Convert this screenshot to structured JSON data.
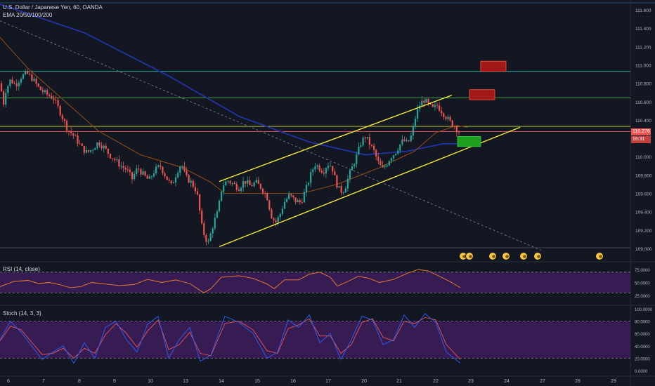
{
  "header": {
    "title": "U.S. Dollar / Japanese Yen, 60, OANDA",
    "ema_label": "EMA 20/50/100/200"
  },
  "rsi": {
    "label": "RSI (14, close)",
    "ticks": [
      "75.0000",
      "50.0000",
      "25.0000"
    ]
  },
  "stoch": {
    "label": "Stoch (14, 3, 3)",
    "ticks": [
      "100.0000",
      "80.0000",
      "60.0000",
      "40.0000",
      "20.0000",
      "0.0000"
    ]
  },
  "price_tags": {
    "last": "110.276",
    "countdown": "16:31",
    "axis_frag": "1"
  },
  "colors": {
    "background": "#131722",
    "up": "#26a69a",
    "down": "#ef5350",
    "channel": "#f2e93a",
    "rsi": "#f2822b",
    "stoch_k": "#2962ff",
    "stoch_d": "#ef5350",
    "band": "#3c1d5a",
    "ema_blue": "#2233a8",
    "ema_orange": "#8c4a18"
  },
  "chart_data": {
    "type": "candlestick",
    "ylim": [
      108.95,
      111.75
    ],
    "y_ticks": [
      "111.600",
      "111.400",
      "111.200",
      "111.000",
      "110.800",
      "110.600",
      "110.400",
      "110.000",
      "109.800",
      "109.600",
      "109.400",
      "109.200",
      "109.000"
    ],
    "x_ticks": [
      "6",
      "7",
      "8",
      "9",
      "10",
      "13",
      "14",
      "15",
      "16",
      "17",
      "20",
      "21",
      "22",
      "23",
      "24",
      "27",
      "28",
      "29"
    ],
    "horizontal_levels": [
      110.93,
      110.64,
      110.33,
      110.273
    ],
    "close_path": [
      [
        0,
        110.8
      ],
      [
        5,
        110.58
      ],
      [
        8,
        110.72
      ],
      [
        15,
        110.84
      ],
      [
        22,
        110.78
      ],
      [
        30,
        110.87
      ],
      [
        38,
        110.91
      ],
      [
        46,
        110.85
      ],
      [
        56,
        110.74
      ],
      [
        66,
        110.68
      ],
      [
        76,
        110.64
      ],
      [
        86,
        110.48
      ],
      [
        96,
        110.3
      ],
      [
        106,
        110.22
      ],
      [
        116,
        110.1
      ],
      [
        124,
        110.04
      ],
      [
        132,
        110.09
      ],
      [
        140,
        110.16
      ],
      [
        148,
        110.1
      ],
      [
        156,
        110.02
      ],
      [
        164,
        109.96
      ],
      [
        172,
        109.9
      ],
      [
        180,
        109.86
      ],
      [
        188,
        109.76
      ],
      [
        196,
        109.88
      ],
      [
        204,
        109.8
      ],
      [
        212,
        109.74
      ],
      [
        220,
        109.85
      ],
      [
        228,
        109.9
      ],
      [
        236,
        109.78
      ],
      [
        244,
        109.68
      ],
      [
        252,
        109.84
      ],
      [
        258,
        109.93
      ],
      [
        264,
        109.78
      ],
      [
        272,
        109.72
      ],
      [
        280,
        109.62
      ],
      [
        288,
        109.2
      ],
      [
        296,
        109.05
      ],
      [
        304,
        109.28
      ],
      [
        310,
        109.4
      ],
      [
        316,
        109.68
      ],
      [
        324,
        109.74
      ],
      [
        332,
        109.7
      ],
      [
        340,
        109.66
      ],
      [
        348,
        109.74
      ],
      [
        356,
        109.68
      ],
      [
        364,
        109.72
      ],
      [
        372,
        109.66
      ],
      [
        380,
        109.56
      ],
      [
        386,
        109.36
      ],
      [
        392,
        109.28
      ],
      [
        398,
        109.36
      ],
      [
        404,
        109.5
      ],
      [
        412,
        109.58
      ],
      [
        420,
        109.52
      ],
      [
        428,
        109.5
      ],
      [
        436,
        109.66
      ],
      [
        442,
        109.8
      ],
      [
        448,
        109.92
      ],
      [
        454,
        109.88
      ],
      [
        460,
        109.84
      ],
      [
        466,
        109.92
      ],
      [
        472,
        109.9
      ],
      [
        478,
        109.72
      ],
      [
        484,
        109.62
      ],
      [
        490,
        109.64
      ],
      [
        496,
        109.78
      ],
      [
        502,
        109.9
      ],
      [
        508,
        110.02
      ],
      [
        514,
        110.16
      ],
      [
        520,
        110.22
      ],
      [
        526,
        110.14
      ],
      [
        532,
        110.06
      ],
      [
        538,
        109.94
      ],
      [
        544,
        109.86
      ],
      [
        550,
        109.92
      ],
      [
        556,
        110.0
      ],
      [
        562,
        110.04
      ],
      [
        568,
        110.12
      ],
      [
        574,
        110.18
      ],
      [
        580,
        110.14
      ],
      [
        586,
        110.24
      ],
      [
        592,
        110.46
      ],
      [
        598,
        110.58
      ],
      [
        604,
        110.62
      ],
      [
        610,
        110.56
      ],
      [
        616,
        110.52
      ],
      [
        622,
        110.56
      ],
      [
        628,
        110.5
      ],
      [
        634,
        110.44
      ],
      [
        640,
        110.38
      ],
      [
        646,
        110.34
      ],
      [
        652,
        110.28
      ],
      [
        656,
        110.26
      ]
    ],
    "ema_blue_path": [
      [
        0,
        111.66
      ],
      [
        120,
        111.35
      ],
      [
        240,
        110.88
      ],
      [
        340,
        110.44
      ],
      [
        440,
        110.16
      ],
      [
        520,
        110.02
      ],
      [
        580,
        110.06
      ],
      [
        630,
        110.14
      ],
      [
        660,
        110.14
      ]
    ],
    "ema_orange_path": [
      [
        0,
        111.3
      ],
      [
        40,
        110.96
      ],
      [
        90,
        110.62
      ],
      [
        140,
        110.28
      ],
      [
        200,
        110.02
      ],
      [
        260,
        109.88
      ],
      [
        300,
        109.72
      ],
      [
        320,
        109.6
      ],
      [
        380,
        109.6
      ],
      [
        430,
        109.6
      ],
      [
        480,
        109.7
      ],
      [
        540,
        109.88
      ],
      [
        590,
        110.06
      ],
      [
        620,
        110.26
      ],
      [
        650,
        110.34
      ],
      [
        665,
        110.32
      ]
    ],
    "dashed_trend": [
      [
        0,
        111.48
      ],
      [
        770,
        108.98
      ]
    ],
    "channel_upper": [
      [
        312,
        109.73
      ],
      [
        643,
        110.67
      ]
    ],
    "channel_lower": [
      [
        312,
        109.02
      ],
      [
        740,
        110.32
      ]
    ],
    "zones": [
      {
        "x0": 684,
        "x1": 720,
        "y0": 111.04,
        "y1": 110.93,
        "kind": "resistance"
      },
      {
        "x0": 668,
        "x1": 704,
        "y0": 110.73,
        "y1": 110.62,
        "kind": "resistance"
      },
      {
        "x0": 651,
        "x1": 684,
        "y0": 110.22,
        "y1": 110.11,
        "kind": "support"
      }
    ],
    "events": [
      659,
      668,
      701,
      720,
      745,
      765,
      853
    ],
    "rsi_ylim": [
      17,
      82
    ],
    "rsi_levels": [
      70,
      30
    ],
    "rsi_values": [
      [
        0,
        42
      ],
      [
        20,
        52
      ],
      [
        40,
        54
      ],
      [
        55,
        48
      ],
      [
        70,
        50
      ],
      [
        85,
        46
      ],
      [
        100,
        40
      ],
      [
        115,
        42
      ],
      [
        130,
        50
      ],
      [
        150,
        47
      ],
      [
        170,
        44
      ],
      [
        190,
        46
      ],
      [
        210,
        56
      ],
      [
        230,
        50
      ],
      [
        250,
        55
      ],
      [
        270,
        48
      ],
      [
        290,
        30
      ],
      [
        300,
        38
      ],
      [
        315,
        60
      ],
      [
        340,
        63
      ],
      [
        360,
        58
      ],
      [
        380,
        47
      ],
      [
        390,
        38
      ],
      [
        405,
        55
      ],
      [
        425,
        55
      ],
      [
        440,
        66
      ],
      [
        455,
        70
      ],
      [
        470,
        60
      ],
      [
        480,
        43
      ],
      [
        495,
        52
      ],
      [
        510,
        62
      ],
      [
        525,
        58
      ],
      [
        540,
        50
      ],
      [
        560,
        56
      ],
      [
        580,
        68
      ],
      [
        595,
        75
      ],
      [
        610,
        72
      ],
      [
        625,
        62
      ],
      [
        640,
        52
      ],
      [
        655,
        40
      ]
    ],
    "stoch_ylim": [
      0,
      100
    ],
    "stoch_levels": [
      80,
      20
    ],
    "stoch_k": [
      [
        0,
        50
      ],
      [
        15,
        80
      ],
      [
        30,
        62
      ],
      [
        45,
        40
      ],
      [
        60,
        18
      ],
      [
        75,
        30
      ],
      [
        90,
        40
      ],
      [
        105,
        12
      ],
      [
        120,
        45
      ],
      [
        135,
        20
      ],
      [
        150,
        70
      ],
      [
        165,
        80
      ],
      [
        180,
        50
      ],
      [
        195,
        30
      ],
      [
        210,
        75
      ],
      [
        225,
        88
      ],
      [
        240,
        20
      ],
      [
        255,
        50
      ],
      [
        270,
        70
      ],
      [
        285,
        15
      ],
      [
        300,
        25
      ],
      [
        320,
        88
      ],
      [
        340,
        78
      ],
      [
        360,
        60
      ],
      [
        380,
        20
      ],
      [
        395,
        30
      ],
      [
        410,
        82
      ],
      [
        425,
        70
      ],
      [
        440,
        90
      ],
      [
        455,
        45
      ],
      [
        470,
        60
      ],
      [
        485,
        18
      ],
      [
        500,
        50
      ],
      [
        515,
        88
      ],
      [
        530,
        82
      ],
      [
        545,
        42
      ],
      [
        560,
        50
      ],
      [
        575,
        90
      ],
      [
        590,
        70
      ],
      [
        605,
        92
      ],
      [
        620,
        78
      ],
      [
        635,
        30
      ],
      [
        655,
        12
      ]
    ],
    "stoch_d": [
      [
        0,
        48
      ],
      [
        15,
        72
      ],
      [
        30,
        66
      ],
      [
        45,
        46
      ],
      [
        60,
        26
      ],
      [
        75,
        28
      ],
      [
        90,
        36
      ],
      [
        105,
        20
      ],
      [
        120,
        36
      ],
      [
        135,
        28
      ],
      [
        150,
        58
      ],
      [
        165,
        76
      ],
      [
        180,
        60
      ],
      [
        195,
        38
      ],
      [
        210,
        64
      ],
      [
        225,
        82
      ],
      [
        240,
        34
      ],
      [
        255,
        42
      ],
      [
        270,
        62
      ],
      [
        285,
        28
      ],
      [
        300,
        24
      ],
      [
        320,
        76
      ],
      [
        340,
        80
      ],
      [
        360,
        66
      ],
      [
        380,
        32
      ],
      [
        395,
        28
      ],
      [
        410,
        68
      ],
      [
        425,
        74
      ],
      [
        440,
        84
      ],
      [
        455,
        56
      ],
      [
        470,
        56
      ],
      [
        485,
        28
      ],
      [
        500,
        42
      ],
      [
        515,
        78
      ],
      [
        530,
        84
      ],
      [
        545,
        54
      ],
      [
        560,
        48
      ],
      [
        575,
        80
      ],
      [
        590,
        76
      ],
      [
        605,
        86
      ],
      [
        620,
        82
      ],
      [
        635,
        42
      ],
      [
        655,
        18
      ]
    ]
  }
}
